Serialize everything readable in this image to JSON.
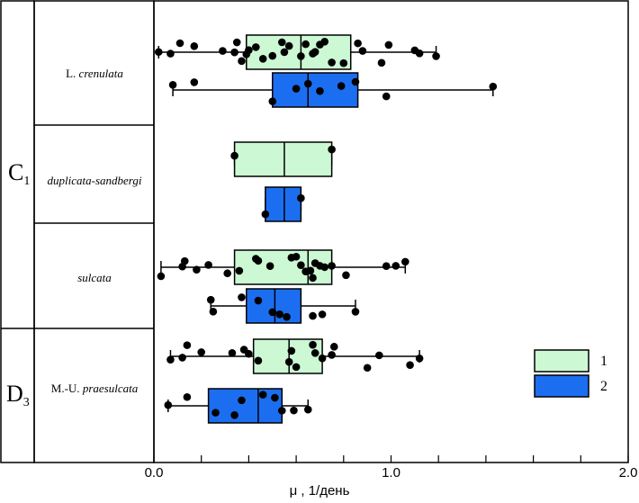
{
  "chart_data": {
    "type": "boxplot",
    "xlabel": "μ , 1/день",
    "xlim": [
      0.0,
      2.0
    ],
    "x_ticks": [
      0.0,
      0.2,
      0.4,
      0.6,
      0.8,
      1.0,
      1.2,
      1.4,
      1.6,
      1.8,
      2.0
    ],
    "x_tick_labels": [
      {
        "value": 0.0,
        "text": "0.0"
      },
      {
        "value": 1.0,
        "text": "1.0"
      },
      {
        "value": 2.0,
        "text": "2.0"
      }
    ],
    "stages": [
      {
        "text": "C",
        "sub": "1"
      },
      {
        "text": "D",
        "sub": "3"
      }
    ],
    "zones": [
      {
        "prefix": "L. ",
        "italic": "crenulata"
      },
      {
        "prefix": "",
        "italic": "duplicata-sandbergi"
      },
      {
        "prefix": "",
        "italic": "sulcata"
      },
      {
        "prefix": "M.-U. ",
        "italic": "praesulcata"
      }
    ],
    "legend": [
      {
        "label": "1",
        "color": "#ccf9d4"
      },
      {
        "label": "2",
        "color": "#1c6ef0"
      }
    ],
    "series": [
      {
        "zone": 0,
        "group": 1,
        "min": 0.02,
        "q1": 0.39,
        "median": 0.62,
        "q3": 0.83,
        "max": 1.19,
        "points": [
          0.02,
          0.07,
          0.11,
          0.17,
          0.29,
          0.34,
          0.35,
          0.37,
          0.39,
          0.4,
          0.43,
          0.46,
          0.5,
          0.54,
          0.55,
          0.57,
          0.62,
          0.64,
          0.67,
          0.68,
          0.7,
          0.72,
          0.75,
          0.8,
          0.86,
          0.88,
          0.96,
          0.99,
          1.1,
          1.12,
          1.19
        ]
      },
      {
        "zone": 0,
        "group": 2,
        "min": 0.08,
        "q1": 0.5,
        "median": 0.65,
        "q3": 0.86,
        "max": 1.43,
        "points": [
          0.08,
          0.17,
          0.5,
          0.6,
          0.65,
          0.7,
          0.79,
          0.85,
          0.98,
          1.43
        ]
      },
      {
        "zone": 1,
        "group": 1,
        "min": 0.34,
        "q1": 0.34,
        "median": 0.55,
        "q3": 0.75,
        "max": 0.75,
        "points": [
          0.34,
          0.75
        ]
      },
      {
        "zone": 1,
        "group": 2,
        "min": 0.47,
        "q1": 0.47,
        "median": 0.55,
        "q3": 0.62,
        "max": 0.62,
        "points": [
          0.47,
          0.62
        ]
      },
      {
        "zone": 2,
        "group": 1,
        "min": 0.03,
        "q1": 0.34,
        "median": 0.65,
        "q3": 0.75,
        "max": 1.06,
        "points": [
          0.03,
          0.12,
          0.13,
          0.18,
          0.23,
          0.31,
          0.36,
          0.43,
          0.44,
          0.49,
          0.58,
          0.6,
          0.62,
          0.64,
          0.66,
          0.67,
          0.68,
          0.7,
          0.72,
          0.75,
          0.81,
          0.98,
          1.02,
          1.06
        ]
      },
      {
        "zone": 2,
        "group": 2,
        "min": 0.24,
        "q1": 0.39,
        "median": 0.51,
        "q3": 0.62,
        "max": 0.85,
        "points": [
          0.24,
          0.25,
          0.37,
          0.44,
          0.5,
          0.53,
          0.56,
          0.67,
          0.71,
          0.85
        ]
      },
      {
        "zone": 3,
        "group": 1,
        "min": 0.07,
        "q1": 0.42,
        "median": 0.57,
        "q3": 0.71,
        "max": 1.12,
        "points": [
          0.07,
          0.12,
          0.14,
          0.2,
          0.33,
          0.38,
          0.4,
          0.44,
          0.57,
          0.58,
          0.6,
          0.67,
          0.68,
          0.71,
          0.75,
          0.76,
          0.9,
          0.95,
          1.08,
          1.12
        ]
      },
      {
        "zone": 3,
        "group": 2,
        "min": 0.06,
        "q1": 0.23,
        "median": 0.44,
        "q3": 0.54,
        "max": 0.65,
        "points": [
          0.06,
          0.14,
          0.26,
          0.34,
          0.37,
          0.46,
          0.51,
          0.54,
          0.59,
          0.65
        ]
      }
    ]
  }
}
